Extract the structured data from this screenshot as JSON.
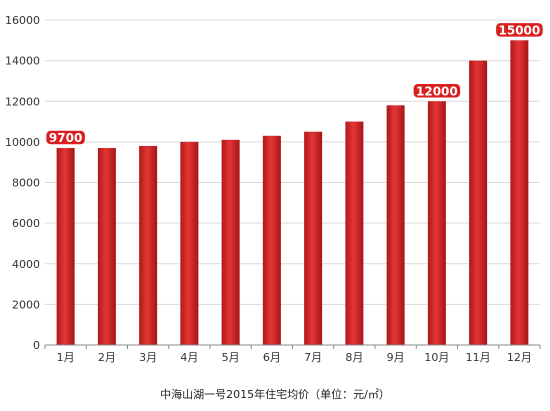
{
  "chart_data": {
    "type": "bar",
    "title": "",
    "xlabel": "中海山湖一号2015年住宅均价（单位：元/㎡）",
    "ylabel": "",
    "categories": [
      "1月",
      "2月",
      "3月",
      "4月",
      "5月",
      "6月",
      "7月",
      "8月",
      "9月",
      "10月",
      "11月",
      "12月"
    ],
    "values": [
      9700,
      9700,
      9800,
      10000,
      10100,
      10300,
      10500,
      11000,
      11800,
      12000,
      14000,
      15000
    ],
    "ylim": [
      0,
      16000
    ],
    "yticks": [
      "0",
      "2000",
      "4000",
      "6000",
      "8000",
      "10000",
      "12000",
      "14000",
      "16000"
    ],
    "grid": true,
    "bar_color": "#d42a2a",
    "callouts": [
      {
        "index": 0,
        "label": "9700"
      },
      {
        "index": 9,
        "label": "12000"
      },
      {
        "index": 11,
        "label": "15000"
      }
    ]
  }
}
